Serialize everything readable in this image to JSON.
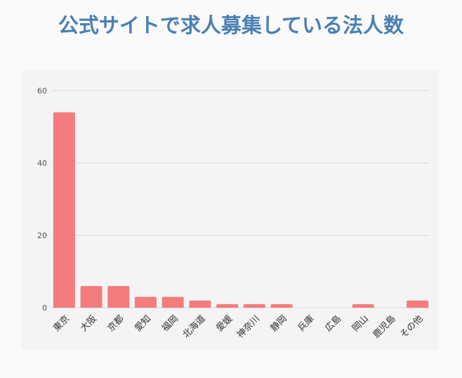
{
  "chart_data": {
    "type": "bar",
    "title": "公式サイトで求人募集している法人数",
    "categories": [
      "東京",
      "大阪",
      "京都",
      "愛知",
      "福岡",
      "北海道",
      "愛媛",
      "神奈川",
      "静岡",
      "兵庫",
      "広島",
      "岡山",
      "鹿児島",
      "その他"
    ],
    "values": [
      54,
      6,
      6,
      3,
      3,
      2,
      1,
      1,
      1,
      0,
      0,
      1,
      0,
      2
    ],
    "ylim": [
      0,
      60
    ],
    "yticks": [
      0,
      20,
      40,
      60
    ],
    "grid": true,
    "legend": "none",
    "x_tick_rotation": "-45",
    "colors": {
      "bar": "#f47c7c",
      "title": "#4a80b3",
      "grid": "#d9d9d9",
      "panel": "#f4f4f4"
    }
  }
}
